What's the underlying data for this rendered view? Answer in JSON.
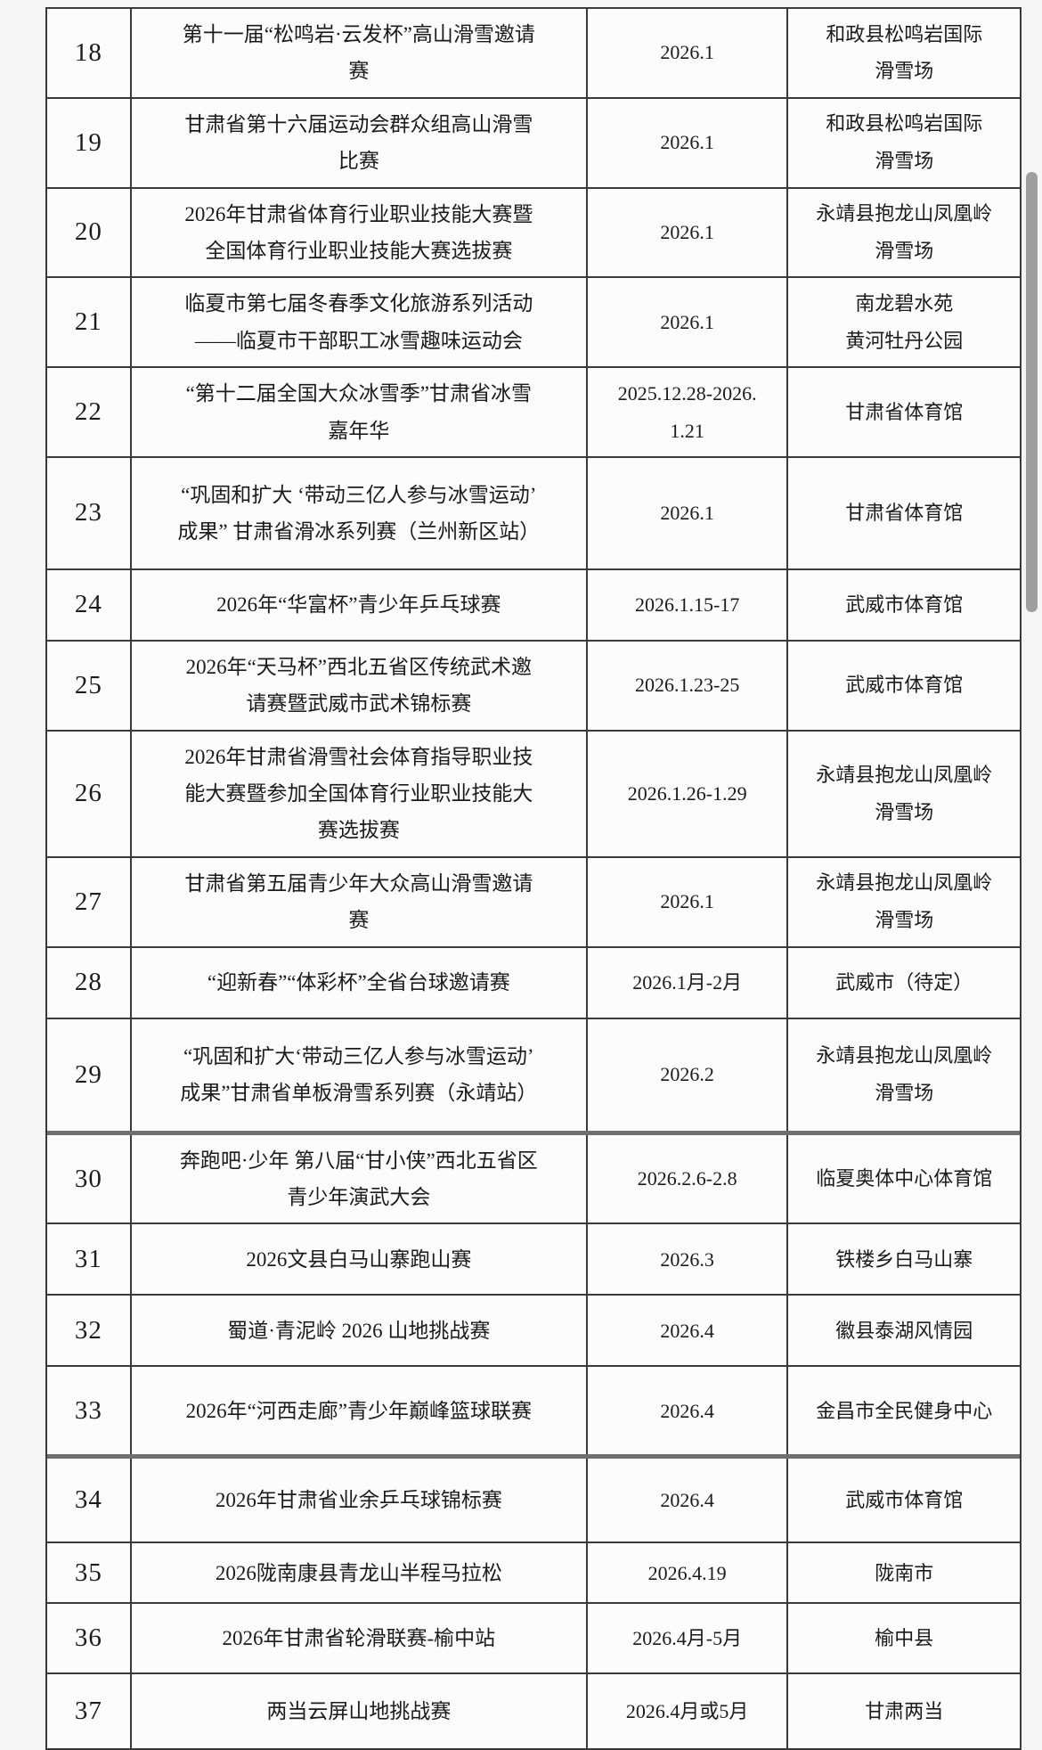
{
  "table": {
    "rows": [
      {
        "no": "18",
        "event": "第十一届“松鸣岩·云发杯”高山滑雪邀请赛",
        "date": "2026.1",
        "venue": "和政县松鸣岩国际\n滑雪场"
      },
      {
        "no": "19",
        "event": "甘肃省第十六届运动会群众组高山滑雪比赛",
        "date": "2026.1",
        "venue": "和政县松鸣岩国际\n滑雪场"
      },
      {
        "no": "20",
        "event": "2026年甘肃省体育行业职业技能大赛暨全国体育行业职业技能大赛选拔赛",
        "date": "2026.1",
        "venue": "永靖县抱龙山凤凰岭\n滑雪场"
      },
      {
        "no": "21",
        "event": "临夏市第七届冬春季文化旅游系列活动——临夏市干部职工冰雪趣味运动会",
        "date": "2026.1",
        "venue": "南龙碧水苑\n黄河牡丹公园"
      },
      {
        "no": "22",
        "event": "“第十二届全国大众冰雪季”甘肃省冰雪嘉年华",
        "date": "2025.12.28-2026.1.21",
        "venue": "甘肃省体育馆"
      },
      {
        "no": "23",
        "event": "“巩固和扩大 ‘带动三亿人参与冰雪运动’ 成果” 甘肃省滑冰系列赛（兰州新区站）",
        "date": "2026.1",
        "venue": "甘肃省体育馆"
      },
      {
        "no": "24",
        "event": "2026年“华富杯”青少年乒乓球赛",
        "date": "2026.1.15-17",
        "venue": "武威市体育馆"
      },
      {
        "no": "25",
        "event": "2026年“天马杯”西北五省区传统武术邀请赛暨武威市武术锦标赛",
        "date": "2026.1.23-25",
        "venue": "武威市体育馆"
      },
      {
        "no": "26",
        "event": "2026年甘肃省滑雪社会体育指导职业技能大赛暨参加全国体育行业职业技能大赛选拔赛",
        "date": "2026.1.26-1.29",
        "venue": "永靖县抱龙山凤凰岭\n滑雪场"
      },
      {
        "no": "27",
        "event": "甘肃省第五届青少年大众高山滑雪邀请赛",
        "date": "2026.1",
        "venue": "永靖县抱龙山凤凰岭\n滑雪场"
      },
      {
        "no": "28",
        "event": "“迎新春”“体彩杯”全省台球邀请赛",
        "date": "2026.1月-2月",
        "venue": "武威市（待定）"
      },
      {
        "no": "29",
        "event": "“巩固和扩大‘带动三亿人参与冰雪运动’ 成果”甘肃省单板滑雪系列赛（永靖站）",
        "date": "2026.2",
        "venue": "永靖县抱龙山凤凰岭\n滑雪场"
      },
      {
        "no": "30",
        "event": "奔跑吧·少年 第八届“甘小侠”西北五省区青少年演武大会",
        "date": "2026.2.6-2.8",
        "venue": "临夏奥体中心体育馆"
      },
      {
        "no": "31",
        "event": "2026文县白马山寨跑山赛",
        "date": "2026.3",
        "venue": "铁楼乡白马山寨"
      },
      {
        "no": "32",
        "event": "蜀道·青泥岭 2026 山地挑战赛",
        "date": "2026.4",
        "venue": "徽县泰湖风情园"
      },
      {
        "no": "33",
        "event": "2026年“河西走廊”青少年巅峰篮球联赛",
        "date": "2026.4",
        "venue": "金昌市全民健身中心"
      },
      {
        "no": "34",
        "event": "2026年甘肃省业余乒乓球锦标赛",
        "date": "2026.4",
        "venue": "武威市体育馆"
      },
      {
        "no": "35",
        "event": "2026陇南康县青龙山半程马拉松",
        "date": "2026.4.19",
        "venue": "陇南市"
      },
      {
        "no": "36",
        "event": "2026年甘肃省轮滑联赛-榆中站",
        "date": "2026.4月-5月",
        "venue": "榆中县"
      },
      {
        "no": "37",
        "event": "两当云屏山地挑战赛",
        "date": "2026.4月或5月",
        "venue": "甘肃两当"
      }
    ]
  }
}
